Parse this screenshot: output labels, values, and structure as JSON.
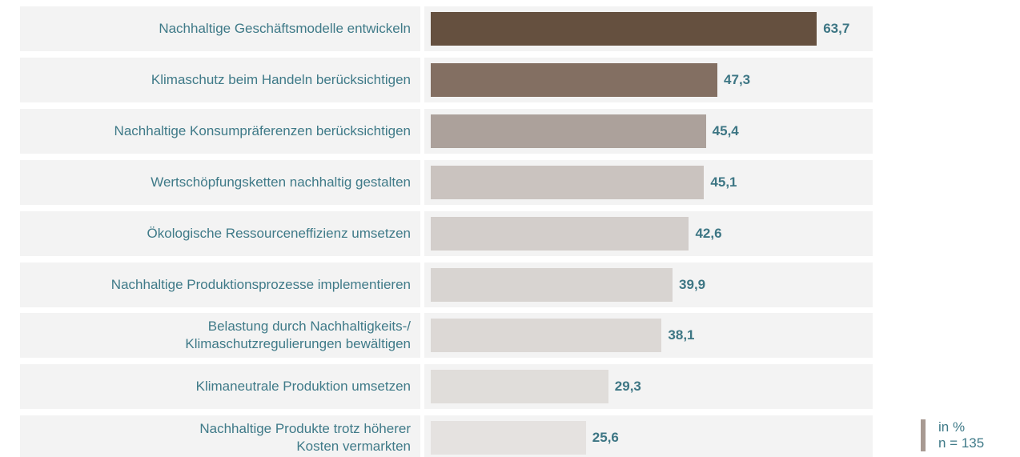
{
  "chart_data": {
    "type": "bar",
    "orientation": "horizontal",
    "categories": [
      "Nachhaltige Geschäftsmodelle entwickeln",
      "Klimaschutz beim Handeln berücksichtigen",
      "Nachhaltige Konsumpräferenzen berücksichtigen",
      "Wertschöpfungsketten nachhaltig gestalten",
      "Ökologische Ressourceneffizienz umsetzen",
      "Nachhaltige Produktionsprozesse implementieren",
      "Belastung durch Nachhaltigkeits-/\nKlimaschutzregulierungen bewältigen",
      "Klimaneutrale Produktion umsetzen",
      "Nachhaltige Produkte trotz höherer\nKosten vermarkten"
    ],
    "values": [
      63.7,
      47.3,
      45.4,
      45.1,
      42.6,
      39.9,
      38.1,
      29.3,
      25.6
    ],
    "value_labels": [
      "63,7",
      "47,3",
      "45,4",
      "45,1",
      "42,6",
      "39,9",
      "38,1",
      "29,3",
      "25,6"
    ],
    "colors": [
      "#65503f",
      "#836f62",
      "#aca19b",
      "#cac3bf",
      "#d3cecb",
      "#d8d4d1",
      "#dcd8d5",
      "#e0ddda",
      "#e5e2e0"
    ],
    "note": [
      "in %",
      "n = 135"
    ]
  }
}
